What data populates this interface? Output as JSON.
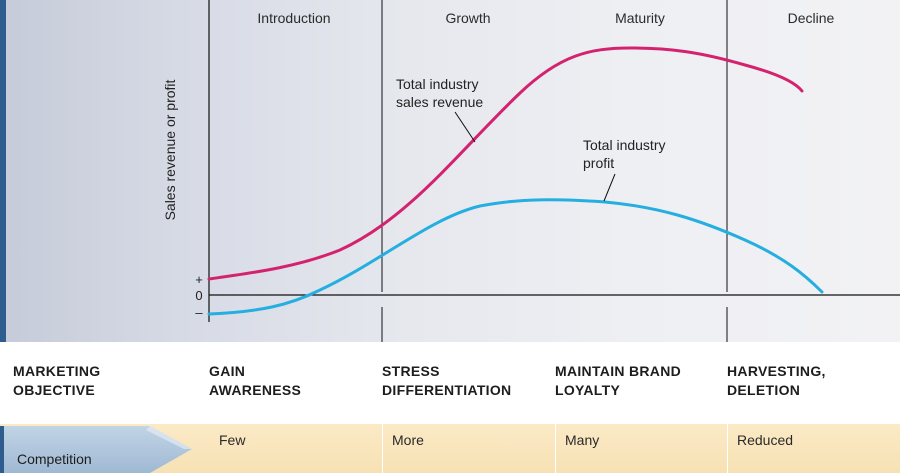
{
  "stages": [
    "Introduction",
    "Growth",
    "Maturity",
    "Decline"
  ],
  "y_axis": {
    "label": "Sales revenue or profit",
    "ticks": [
      "+",
      "0",
      "–"
    ]
  },
  "annotations": {
    "sales_line1": "Total industry",
    "sales_line2": "sales revenue",
    "profit_line1": "Total industry",
    "profit_line2": "profit"
  },
  "colors": {
    "sales": "#d4236e",
    "profit": "#25aee0",
    "accent": "#2f5c8f"
  },
  "objective": {
    "label_line1": "MARKETING",
    "label_line2": "OBJECTIVE",
    "values": [
      {
        "line1": "GAIN",
        "line2": "AWARENESS"
      },
      {
        "line1": "STRESS",
        "line2": "DIFFERENTIATION"
      },
      {
        "line1": "MAINTAIN BRAND",
        "line2": "LOYALTY"
      },
      {
        "line1": "HARVESTING,",
        "line2": "DELETION"
      }
    ]
  },
  "competition": {
    "label": "Competition",
    "values": [
      "Few",
      "More",
      "Many",
      "Reduced"
    ]
  }
}
